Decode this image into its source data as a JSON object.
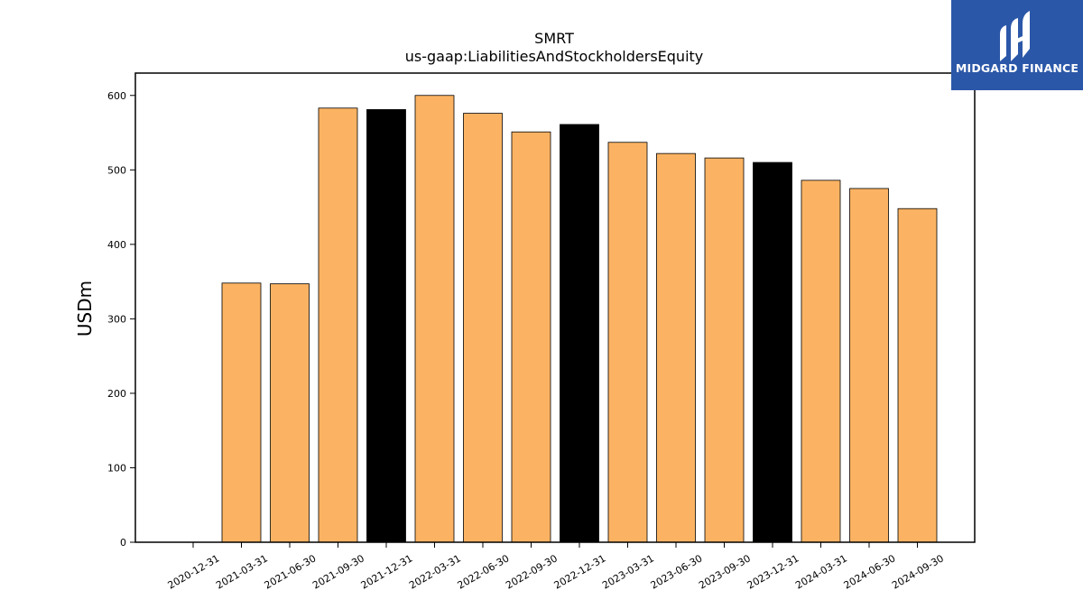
{
  "chart_data": {
    "type": "bar",
    "title": "SMRT",
    "subtitle": "us-gaap:LiabilitiesAndStockholdersEquity",
    "xlabel": "",
    "ylabel": "USDm",
    "ylim": [
      0,
      630
    ],
    "yticks": [
      0,
      100,
      200,
      300,
      400,
      500,
      600
    ],
    "grid": false,
    "categories": [
      "2020-12-31",
      "2021-03-31",
      "2021-06-30",
      "2021-09-30",
      "2021-12-31",
      "2022-03-31",
      "2022-06-30",
      "2022-09-30",
      "2022-12-31",
      "2023-03-31",
      "2023-06-30",
      "2023-09-30",
      "2023-12-31",
      "2024-03-31",
      "2024-06-30",
      "2024-09-30"
    ],
    "values": [
      null,
      348,
      347,
      583,
      581,
      600,
      576,
      551,
      561,
      537,
      522,
      516,
      510,
      486,
      475,
      448
    ],
    "highlight": [
      false,
      false,
      false,
      false,
      true,
      false,
      false,
      false,
      true,
      false,
      false,
      false,
      true,
      false,
      false,
      false
    ],
    "colors": {
      "bar": "#fbb363",
      "highlight": "#000000",
      "edge": "#000000"
    }
  },
  "logo": {
    "text": "MIDGARD FINANCE",
    "background": "#2b57a8"
  }
}
